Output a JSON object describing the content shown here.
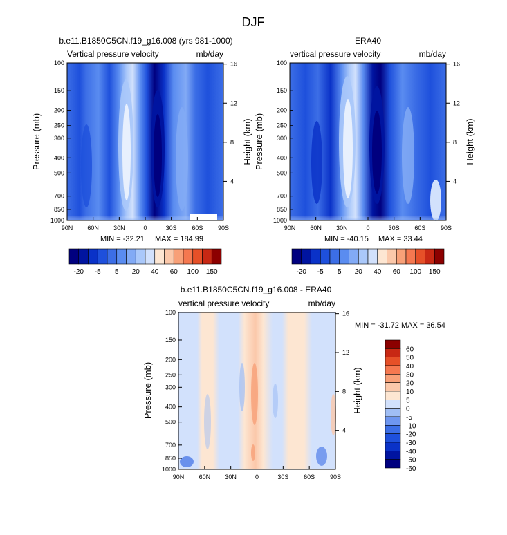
{
  "figure": {
    "title": "DJF"
  },
  "chart_data": [
    {
      "type": "heatmap",
      "title": "b.e11.B1850C5CN.f19_g16.008 (yrs 981-1000)",
      "subtitle_left": "Vertical pressure velocity",
      "subtitle_right": "mb/day",
      "xlabel": "",
      "ylabel": "Pressure (mb)",
      "y2label": "Height (km)",
      "xticks": [
        "90N",
        "60N",
        "30N",
        "0",
        "30S",
        "60S",
        "90S"
      ],
      "yticks": [
        "100",
        "150",
        "200",
        "250",
        "300",
        "400",
        "500",
        "700",
        "850",
        "1000"
      ],
      "y2ticks": [
        "16",
        "12",
        "8",
        "4"
      ],
      "min_label": "MIN = -32.21",
      "max_label": "MAX = 184.99",
      "colorbar_labels": [
        "-20",
        "-5",
        "5",
        "20",
        "40",
        "60",
        "100",
        "150"
      ],
      "colorbar_orientation": "horizontal"
    },
    {
      "type": "heatmap",
      "title": "ERA40",
      "subtitle_left": "vertical pressure velocity",
      "subtitle_right": "mb/day",
      "xlabel": "",
      "ylabel": "Pressure (mb)",
      "y2label": "Height (km)",
      "xticks": [
        "90N",
        "60N",
        "30N",
        "0",
        "30S",
        "60S",
        "90S"
      ],
      "yticks": [
        "100",
        "150",
        "200",
        "250",
        "300",
        "400",
        "500",
        "700",
        "850",
        "1000"
      ],
      "y2ticks": [
        "16",
        "12",
        "8",
        "4"
      ],
      "min_label": "MIN = -40.15",
      "max_label": "MAX = 33.44",
      "colorbar_labels": [
        "-20",
        "-5",
        "5",
        "20",
        "40",
        "60",
        "100",
        "150"
      ],
      "colorbar_orientation": "horizontal"
    },
    {
      "type": "heatmap",
      "title": "b.e11.B1850C5CN.f19_g16.008 - ERA40",
      "subtitle_left": "vertical pressure velocity",
      "subtitle_right": "mb/day",
      "xlabel": "",
      "ylabel": "Pressure (mb)",
      "y2label": "Height (km)",
      "xticks": [
        "90N",
        "60N",
        "30N",
        "0",
        "30S",
        "60S",
        "90S"
      ],
      "yticks": [
        "100",
        "150",
        "200",
        "250",
        "300",
        "400",
        "500",
        "700",
        "850",
        "1000"
      ],
      "y2ticks": [
        "16",
        "12",
        "8",
        "4"
      ],
      "minmax_label": "MIN = -31.72  MAX = 36.54",
      "colorbar_labels": [
        "60",
        "50",
        "40",
        "30",
        "20",
        "10",
        "5",
        "0",
        "-5",
        "-10",
        "-20",
        "-30",
        "-40",
        "-50",
        "-60"
      ],
      "colorbar_orientation": "vertical"
    }
  ],
  "colors": {
    "abs_scale": [
      "#00007f",
      "#0014a0",
      "#0a32c8",
      "#1e50dc",
      "#3c6ee6",
      "#5a8cf0",
      "#82aaf5",
      "#aac8fa",
      "#d2e1fc",
      "#fde6d2",
      "#fbc8aa",
      "#f8a078",
      "#f57850",
      "#e65028",
      "#c82814",
      "#8c0000"
    ],
    "diff_scale": [
      "#00007f",
      "#0014a0",
      "#0a32c8",
      "#1e50dc",
      "#3c6ee6",
      "#6e96f0",
      "#a0bef5",
      "#d2e1fc",
      "#fde6d2",
      "#fbc8aa",
      "#f8a078",
      "#f57850",
      "#e65028",
      "#c82814",
      "#8c0000"
    ]
  }
}
